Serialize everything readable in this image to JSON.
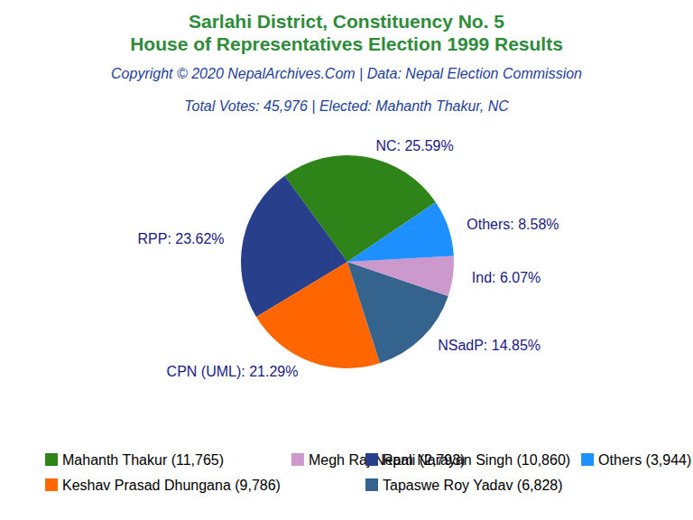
{
  "chart_data": {
    "type": "pie",
    "title": [
      "Sarlahi District, Constituency No. 5",
      "House of Representatives Election 1999 Results"
    ],
    "subtitle": [
      "Copyright © 2020 NepalArchives.Com | Data: Nepal Election Commission",
      "Total Votes: 45,976 | Elected: Mahanth Thakur, NC"
    ],
    "categories": [
      "Mahanth Thakur (11,765)",
      "Ram Narayan Singh (10,860)",
      "Keshav Prasad Dhungana (9,786)",
      "Tapaswe Roy Yadav (6,828)",
      "Megh Raj Nepali (2,793)",
      "Others (3,944)"
    ],
    "values": [
      25.59,
      23.62,
      21.29,
      14.85,
      6.07,
      8.58
    ],
    "value_labels": [
      "NC: 25.59%",
      "RPP: 23.62%",
      "CPN (UML): 21.29%",
      "NSadP: 14.85%",
      "Ind: 6.07%",
      "Others: 8.58%"
    ],
    "colors": [
      "#2e8419",
      "#283f8c",
      "#ff6600",
      "#34638e",
      "#cc99cc",
      "#1e90ff"
    ],
    "data_labels": true,
    "legend": "bottom"
  }
}
